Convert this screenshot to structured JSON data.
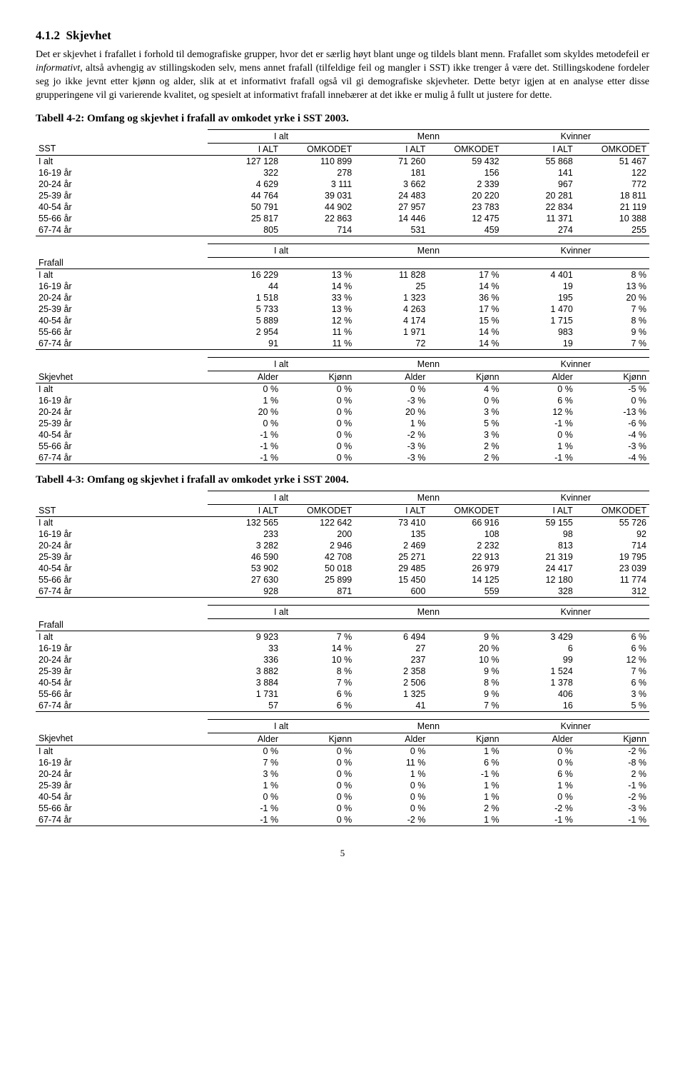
{
  "section": {
    "number": "4.1.2",
    "title": "Skjevhet",
    "para1a": "Det er skjevhet i frafallet i forhold til demografiske grupper, hvor det er særlig høyt blant unge og tildels blant menn. Frafallet som skyldes metodefeil er ",
    "para1_italic": "informativt",
    "para1b": ", altså avhengig av stillingskoden selv, mens annet frafall (tilfeldige feil og mangler i SST) ikke trenger å være det. Stillingskodene fordeler seg jo ikke jevnt etter kjønn og alder, slik at et informativt frafall også vil gi demografiske skjevheter. Dette betyr igjen at en analyse etter disse grupperingene vil gi varierende kvalitet, og spesielt at informativt frafall innebærer at det ikke er mulig å fullt ut justere for dette."
  },
  "labels": {
    "ialt_group": "I alt",
    "menn": "Menn",
    "kvinner": "Kvinner",
    "sst": "SST",
    "ialt_col": "I ALT",
    "omkodet": "OMKODET",
    "frafall": "Frafall",
    "skjevhet": "Skjevhet",
    "alder": "Alder",
    "kjonn": "Kjønn"
  },
  "age_rows": [
    "I alt",
    "16-19 år",
    "20-24 år",
    "25-39 år",
    "40-54 år",
    "55-66 år",
    "67-74 år"
  ],
  "table42": {
    "title": "Tabell 4-2: Omfang og skjevhet i frafall av omkodet yrke i SST 2003.",
    "sst": [
      [
        "127 128",
        "110 899",
        "71 260",
        "59 432",
        "55 868",
        "51 467"
      ],
      [
        "322",
        "278",
        "181",
        "156",
        "141",
        "122"
      ],
      [
        "4 629",
        "3 111",
        "3 662",
        "2 339",
        "967",
        "772"
      ],
      [
        "44 764",
        "39 031",
        "24 483",
        "20 220",
        "20 281",
        "18 811"
      ],
      [
        "50 791",
        "44 902",
        "27 957",
        "23 783",
        "22 834",
        "21 119"
      ],
      [
        "25 817",
        "22 863",
        "14 446",
        "12 475",
        "11 371",
        "10 388"
      ],
      [
        "805",
        "714",
        "531",
        "459",
        "274",
        "255"
      ]
    ],
    "frafall": [
      [
        "16 229",
        "13 %",
        "11 828",
        "17 %",
        "4 401",
        "8 %"
      ],
      [
        "44",
        "14 %",
        "25",
        "14 %",
        "19",
        "13 %"
      ],
      [
        "1 518",
        "33 %",
        "1 323",
        "36 %",
        "195",
        "20 %"
      ],
      [
        "5 733",
        "13 %",
        "4 263",
        "17 %",
        "1 470",
        "7 %"
      ],
      [
        "5 889",
        "12 %",
        "4 174",
        "15 %",
        "1 715",
        "8 %"
      ],
      [
        "2 954",
        "11 %",
        "1 971",
        "14 %",
        "983",
        "9 %"
      ],
      [
        "91",
        "11 %",
        "72",
        "14 %",
        "19",
        "7 %"
      ]
    ],
    "skjevhet": [
      [
        "0 %",
        "0 %",
        "0 %",
        "4 %",
        "0 %",
        "-5 %"
      ],
      [
        "1 %",
        "0 %",
        "-3 %",
        "0 %",
        "6 %",
        "0 %"
      ],
      [
        "20 %",
        "0 %",
        "20 %",
        "3 %",
        "12 %",
        "-13 %"
      ],
      [
        "0 %",
        "0 %",
        "1 %",
        "5 %",
        "-1 %",
        "-6 %"
      ],
      [
        "-1 %",
        "0 %",
        "-2 %",
        "3 %",
        "0 %",
        "-4 %"
      ],
      [
        "-1 %",
        "0 %",
        "-3 %",
        "2 %",
        "1 %",
        "-3 %"
      ],
      [
        "-1 %",
        "0 %",
        "-3 %",
        "2 %",
        "-1 %",
        "-4 %"
      ]
    ]
  },
  "table43": {
    "title": "Tabell 4-3: Omfang og skjevhet i frafall av omkodet yrke i SST 2004.",
    "sst": [
      [
        "132 565",
        "122 642",
        "73 410",
        "66 916",
        "59 155",
        "55 726"
      ],
      [
        "233",
        "200",
        "135",
        "108",
        "98",
        "92"
      ],
      [
        "3 282",
        "2 946",
        "2 469",
        "2 232",
        "813",
        "714"
      ],
      [
        "46 590",
        "42 708",
        "25 271",
        "22 913",
        "21 319",
        "19 795"
      ],
      [
        "53 902",
        "50 018",
        "29 485",
        "26 979",
        "24 417",
        "23 039"
      ],
      [
        "27 630",
        "25 899",
        "15 450",
        "14 125",
        "12 180",
        "11 774"
      ],
      [
        "928",
        "871",
        "600",
        "559",
        "328",
        "312"
      ]
    ],
    "frafall": [
      [
        "9 923",
        "7 %",
        "6 494",
        "9 %",
        "3 429",
        "6 %"
      ],
      [
        "33",
        "14 %",
        "27",
        "20 %",
        "6",
        "6 %"
      ],
      [
        "336",
        "10 %",
        "237",
        "10 %",
        "99",
        "12 %"
      ],
      [
        "3 882",
        "8 %",
        "2 358",
        "9 %",
        "1 524",
        "7 %"
      ],
      [
        "3 884",
        "7 %",
        "2 506",
        "8 %",
        "1 378",
        "6 %"
      ],
      [
        "1 731",
        "6 %",
        "1 325",
        "9 %",
        "406",
        "3 %"
      ],
      [
        "57",
        "6 %",
        "41",
        "7 %",
        "16",
        "5 %"
      ]
    ],
    "skjevhet": [
      [
        "0 %",
        "0 %",
        "0 %",
        "1 %",
        "0 %",
        "-2 %"
      ],
      [
        "7 %",
        "0 %",
        "11 %",
        "6 %",
        "0 %",
        "-8 %"
      ],
      [
        "3 %",
        "0 %",
        "1 %",
        "-1 %",
        "6 %",
        "2 %"
      ],
      [
        "1 %",
        "0 %",
        "0 %",
        "1 %",
        "1 %",
        "-1 %"
      ],
      [
        "0 %",
        "0 %",
        "0 %",
        "1 %",
        "0 %",
        "-2 %"
      ],
      [
        "-1 %",
        "0 %",
        "0 %",
        "2 %",
        "-2 %",
        "-3 %"
      ],
      [
        "-1 %",
        "0 %",
        "-2 %",
        "1 %",
        "-1 %",
        "-1 %"
      ]
    ]
  },
  "page_number": "5"
}
